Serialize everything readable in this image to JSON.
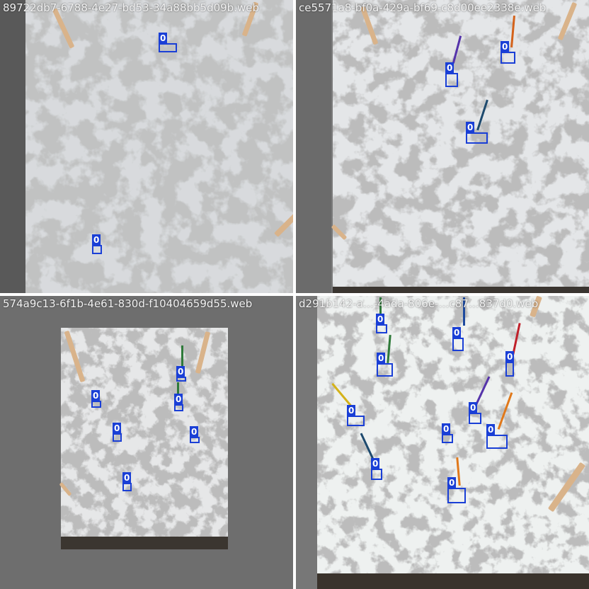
{
  "tiles": [
    {
      "filename": "89722db7-6788-4e27-bd53-34a88bb5d09b.web",
      "detections": [
        {
          "label": "0"
        },
        {
          "label": "0"
        }
      ]
    },
    {
      "filename": "ce5571a8-bf0a-429a-bf69-c8d00ee2338e.web",
      "detections": [
        {
          "label": "0"
        },
        {
          "label": "0"
        },
        {
          "label": "0"
        }
      ]
    },
    {
      "filename": "574a9c13-6f1b-4e61-830d-f10404659d55.web",
      "detections": [
        {
          "label": "0"
        },
        {
          "label": "0"
        },
        {
          "label": "0"
        },
        {
          "label": "0"
        },
        {
          "label": "0"
        },
        {
          "label": "0"
        }
      ]
    },
    {
      "filename": "d291b142-a…-4ada-806e-…c87…837d0.web",
      "detections": [
        {
          "label": "0"
        },
        {
          "label": "0"
        },
        {
          "label": "0"
        },
        {
          "label": "0"
        },
        {
          "label": "0"
        },
        {
          "label": "0"
        },
        {
          "label": "0"
        },
        {
          "label": "0"
        },
        {
          "label": "0"
        }
      ]
    }
  ],
  "colors": {
    "box": "#1a3fd6",
    "background_gray": "#7a7a7a"
  }
}
